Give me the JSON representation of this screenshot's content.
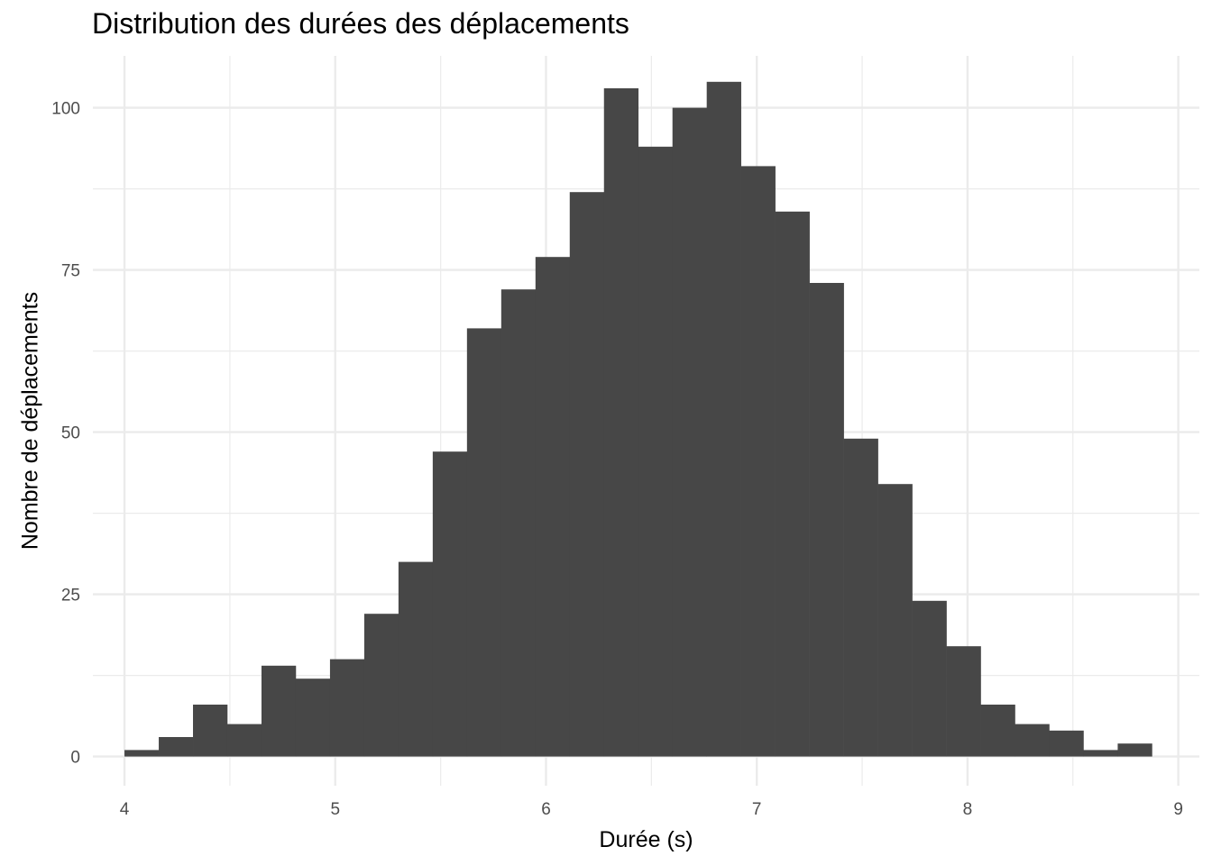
{
  "chart_data": {
    "type": "bar",
    "title": "Distribution des durées des déplacements",
    "xlabel": "Durée (s)",
    "ylabel": "Nombre de déplacements",
    "xlim": [
      3.85,
      9.1
    ],
    "ylim": [
      -4.5,
      108
    ],
    "x_ticks": [
      4,
      5,
      6,
      7,
      8,
      9
    ],
    "y_ticks": [
      0,
      25,
      50,
      75,
      100
    ],
    "grid": true,
    "bar_color": "#474747",
    "bin_edges": [
      4.0,
      4.1625,
      4.325,
      4.4875,
      4.65,
      4.8125,
      4.975,
      5.1375,
      5.3,
      5.4625,
      5.625,
      5.7875,
      5.95,
      6.1125,
      6.275,
      6.4375,
      6.6,
      6.7625,
      6.925,
      7.0875,
      7.25,
      7.4125,
      7.575,
      7.7375,
      7.9,
      8.0625,
      8.225,
      8.3875,
      8.55,
      8.7125,
      8.875
    ],
    "values": [
      1,
      3,
      8,
      5,
      14,
      12,
      15,
      22,
      30,
      47,
      66,
      72,
      77,
      87,
      103,
      94,
      100,
      104,
      91,
      84,
      73,
      49,
      42,
      24,
      17,
      8,
      5,
      4,
      1,
      2
    ]
  }
}
